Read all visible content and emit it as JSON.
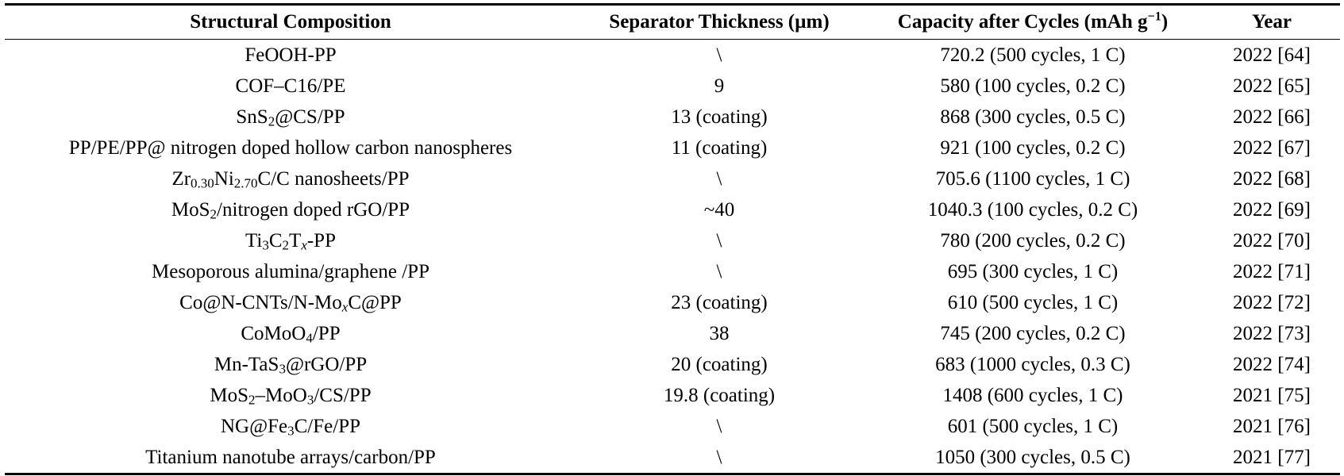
{
  "table": {
    "headers": [
      [
        {
          "t": "Structural Composition"
        }
      ],
      [
        {
          "t": "Separator Thickness (µm)"
        }
      ],
      [
        {
          "t": "Capacity after Cycles (mAh g"
        },
        {
          "t": "−1",
          "s": "sup"
        },
        {
          "t": ")"
        }
      ],
      [
        {
          "t": "Year"
        }
      ]
    ],
    "rows": [
      {
        "composition": [
          {
            "t": "FeOOH-PP"
          }
        ],
        "thickness": "\\",
        "capacity": "720.2 (500 cycles, 1 C)",
        "year": "2022 [64]"
      },
      {
        "composition": [
          {
            "t": "COF–C16/PE"
          }
        ],
        "thickness": "9",
        "capacity": "580 (100 cycles, 0.2 C)",
        "year": "2022 [65]"
      },
      {
        "composition": [
          {
            "t": "SnS"
          },
          {
            "t": "2",
            "s": "sub"
          },
          {
            "t": "@CS/PP"
          }
        ],
        "thickness": "13 (coating)",
        "capacity": "868 (300 cycles, 0.5 C)",
        "year": "2022 [66]"
      },
      {
        "composition": [
          {
            "t": "PP/PE/PP@ nitrogen doped hollow carbon nanospheres"
          }
        ],
        "thickness": "11 (coating)",
        "capacity": "921 (100 cycles, 0.2 C)",
        "year": "2022 [67]"
      },
      {
        "composition": [
          {
            "t": "Zr"
          },
          {
            "t": "0.30",
            "s": "sub"
          },
          {
            "t": "Ni"
          },
          {
            "t": "2.70",
            "s": "sub"
          },
          {
            "t": "C/C nanosheets/PP"
          }
        ],
        "thickness": "\\",
        "capacity": "705.6 (1100 cycles, 1 C)",
        "year": "2022 [68]"
      },
      {
        "composition": [
          {
            "t": "MoS"
          },
          {
            "t": "2",
            "s": "sub"
          },
          {
            "t": "/nitrogen doped rGO/PP"
          }
        ],
        "thickness": "~40",
        "capacity": "1040.3 (100 cycles, 0.2 C)",
        "year": "2022 [69]"
      },
      {
        "composition": [
          {
            "t": "Ti"
          },
          {
            "t": "3",
            "s": "sub"
          },
          {
            "t": "C"
          },
          {
            "t": "2",
            "s": "sub"
          },
          {
            "t": "T"
          },
          {
            "t": "x",
            "s": "subi"
          },
          {
            "t": "-PP"
          }
        ],
        "thickness": "\\",
        "capacity": "780 (200 cycles, 0.2 C)",
        "year": "2022 [70]"
      },
      {
        "composition": [
          {
            "t": "Mesoporous alumina/graphene /PP"
          }
        ],
        "thickness": "\\",
        "capacity": "695 (300 cycles, 1 C)",
        "year": "2022 [71]"
      },
      {
        "composition": [
          {
            "t": "Co@N-CNTs/N-Mo"
          },
          {
            "t": "x",
            "s": "subi"
          },
          {
            "t": "C@PP"
          }
        ],
        "thickness": "23 (coating)",
        "capacity": "610 (500 cycles, 1 C)",
        "year": "2022 [72]"
      },
      {
        "composition": [
          {
            "t": "CoMoO"
          },
          {
            "t": "4",
            "s": "sub"
          },
          {
            "t": "/PP"
          }
        ],
        "thickness": "38",
        "capacity": "745 (200 cycles, 0.2 C)",
        "year": "2022 [73]"
      },
      {
        "composition": [
          {
            "t": "Mn-TaS"
          },
          {
            "t": "3",
            "s": "sub"
          },
          {
            "t": "@rGO/PP"
          }
        ],
        "thickness": "20 (coating)",
        "capacity": "683 (1000 cycles, 0.3 C)",
        "year": "2022 [74]"
      },
      {
        "composition": [
          {
            "t": "MoS"
          },
          {
            "t": "2",
            "s": "sub"
          },
          {
            "t": "–MoO"
          },
          {
            "t": "3",
            "s": "sub"
          },
          {
            "t": "/CS/PP"
          }
        ],
        "thickness": "19.8 (coating)",
        "capacity": "1408 (600 cycles, 1 C)",
        "year": "2021 [75]"
      },
      {
        "composition": [
          {
            "t": "NG@Fe"
          },
          {
            "t": "3",
            "s": "sub"
          },
          {
            "t": "C/Fe/PP"
          }
        ],
        "thickness": "\\",
        "capacity": "601 (500 cycles, 1 C)",
        "year": "2021 [76]"
      },
      {
        "composition": [
          {
            "t": "Titanium nanotube arrays/carbon/PP"
          }
        ],
        "thickness": "\\",
        "capacity": "1050 (300 cycles, 0.5 C)",
        "year": "2021 [77]"
      }
    ]
  }
}
